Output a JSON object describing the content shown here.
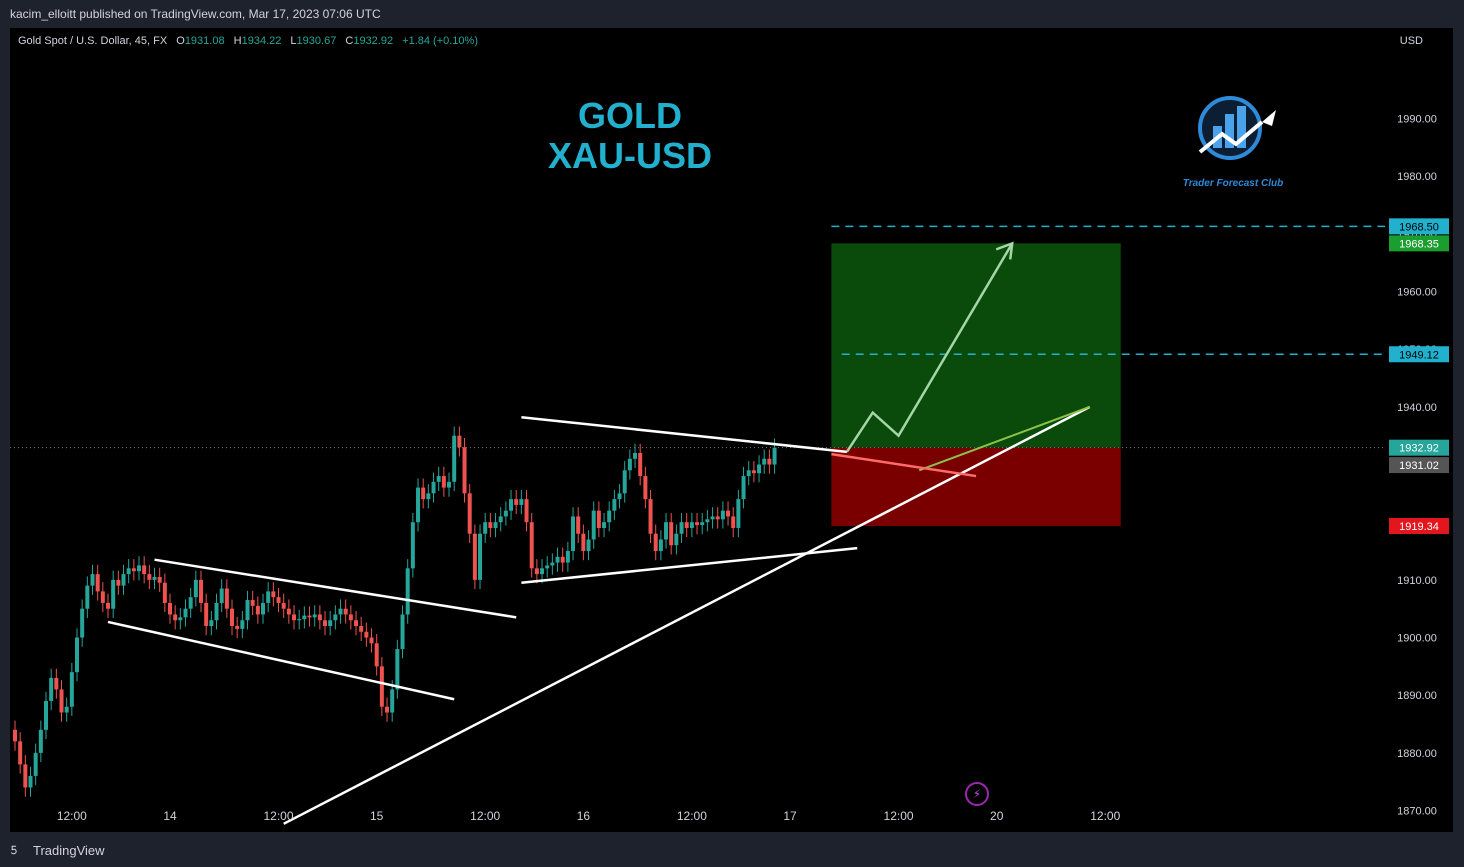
{
  "header": {
    "published": "kacim_elloitt published on TradingView.com, Mar 17, 2023 07:06 UTC"
  },
  "legend": {
    "symbol": "Gold Spot / U.S. Dollar, 45, FX",
    "open_label": "O",
    "open": "1931.08",
    "high_label": "H",
    "high": "1934.22",
    "low_label": "L",
    "low": "1930.67",
    "close_label": "C",
    "close": "1932.92",
    "change": "+1.84 (+0.10%)"
  },
  "currency": "USD",
  "title_line1": "GOLD",
  "title_line2": "XAU-USD",
  "logo_text": "Trader Forecast Club",
  "footer": {
    "brand": "TradingView"
  },
  "colors": {
    "bull": "#26a69a",
    "bear": "#ef5350",
    "accent": "#21b1cf",
    "profit_zone": "#0a4a0a",
    "loss_zone": "#7a0000"
  },
  "chart_data": {
    "type": "candlestick",
    "ylim": [
      1866,
      2005
    ],
    "y_ticks": [
      1870,
      1880,
      1890,
      1900,
      1910,
      1920,
      1930,
      1940,
      1950,
      1960,
      1970,
      1980,
      1990
    ],
    "y_tick_labels": [
      "1870.00",
      "1880.00",
      "1890.00",
      "1900.00",
      "1910.00",
      "1920.00",
      "1930.00",
      "1940.00",
      "1950.00",
      "1960.00",
      "1970.00",
      "1980.00",
      "1990.00"
    ],
    "x_ticks": [
      {
        "label": "12:00",
        "bar": 11
      },
      {
        "label": "14",
        "bar": 30
      },
      {
        "label": "12:00",
        "bar": 51
      },
      {
        "label": "15",
        "bar": 70
      },
      {
        "label": "12:00",
        "bar": 91
      },
      {
        "label": "16",
        "bar": 110
      },
      {
        "label": "12:00",
        "bar": 131
      },
      {
        "label": "17",
        "bar": 150
      },
      {
        "label": "12:00",
        "bar": 171
      },
      {
        "label": "20",
        "bar": 190
      },
      {
        "label": "12:00",
        "bar": 211
      }
    ],
    "closes": [
      1882.0,
      1878.0,
      1874.0,
      1876.0,
      1880.0,
      1884.0,
      1889.0,
      1893.0,
      1891.0,
      1887.0,
      1888.0,
      1894.0,
      1900.0,
      1905.0,
      1909.0,
      1911.0,
      1908.0,
      1906.0,
      1905.0,
      1910.0,
      1909.0,
      1911.0,
      1912.0,
      1911.5,
      1912.5,
      1911.0,
      1910.0,
      1910.5,
      1909.5,
      1906.0,
      1904.0,
      1903.0,
      1903.5,
      1905.0,
      1907.0,
      1910.0,
      1906.0,
      1902.0,
      1903.0,
      1906.0,
      1908.5,
      1905.0,
      1902.0,
      1901.5,
      1903.0,
      1906.5,
      1905.5,
      1904.0,
      1906.0,
      1908.0,
      1907.0,
      1906.0,
      1905.0,
      1904.0,
      1903.0,
      1903.2,
      1903.8,
      1903.5,
      1904.0,
      1903.0,
      1902.0,
      1903.0,
      1904.0,
      1905.0,
      1904.0,
      1903.0,
      1902.0,
      1901.0,
      1900.0,
      1899.0,
      1895.0,
      1888.0,
      1887.0,
      1891.0,
      1898.0,
      1904.0,
      1912.0,
      1920.0,
      1926.0,
      1924.0,
      1925.0,
      1927.0,
      1928.0,
      1926.0,
      1927.0,
      1935.0,
      1933.0,
      1925.0,
      1918.0,
      1910.0,
      1918.0,
      1920.0,
      1919.0,
      1920.0,
      1921.0,
      1922.0,
      1924.0,
      1923.0,
      1924.0,
      1920.0,
      1912.0,
      1911.0,
      1912.0,
      1912.5,
      1913.0,
      1914.0,
      1913.0,
      1915.0,
      1921.0,
      1918.0,
      1915.0,
      1917.0,
      1922.0,
      1919.0,
      1920.0,
      1922.0,
      1924.0,
      1925.0,
      1929.0,
      1931.0,
      1932.0,
      1928.0,
      1924.0,
      1918.0,
      1915.0,
      1917.0,
      1920.0,
      1916.0,
      1918.0,
      1920.0,
      1919.0,
      1920.0,
      1919.5,
      1920.0,
      1920.5,
      1921.0,
      1920.5,
      1922.0,
      1921.0,
      1919.0,
      1924.0,
      1928.0,
      1929.0,
      1928.5,
      1930.0,
      1931.0,
      1930.0,
      1932.92
    ],
    "last_price": 1932.92,
    "pattern_lines": [
      {
        "name": "upper-channel-line",
        "a": [
          27,
          1913.5
        ],
        "b": [
          97,
          1903.5
        ]
      },
      {
        "name": "lower-channel-line",
        "a": [
          18,
          1902.7
        ],
        "b": [
          85,
          1889.3
        ]
      },
      {
        "name": "triangle-top-line",
        "a": [
          98,
          1938.2
        ],
        "b": [
          161,
          1932.2
        ]
      },
      {
        "name": "triangle-bottom-line",
        "a": [
          98,
          1909.5
        ],
        "b": [
          163,
          1915.5
        ]
      },
      {
        "name": "rising-trendline",
        "a": [
          52,
          1867.7
        ],
        "b": [
          208,
          1940.0
        ]
      }
    ],
    "projection_path": [
      [
        161,
        1932.2
      ],
      [
        166,
        1939.0
      ],
      [
        171,
        1935.0
      ],
      [
        193,
        1968.35
      ]
    ],
    "red_arrow": {
      "a": [
        158,
        1931.8
      ],
      "b": [
        186,
        1928.0
      ]
    },
    "position": {
      "entry": 1932.92,
      "target": 1968.35,
      "stop": 1919.34,
      "x_start": 158,
      "x_end": 214
    },
    "price_labels": [
      {
        "value": "1968.50",
        "price": 1971.3,
        "bg": "#21b1cf",
        "fg": "#000000"
      },
      {
        "value": "1968.35",
        "price": 1968.35,
        "bg": "#1a9e2f",
        "fg": "#ffffff"
      },
      {
        "value": "1949.12",
        "price": 1949.12,
        "bg": "#21b1cf",
        "fg": "#000000"
      },
      {
        "value": "1932.92",
        "price": 1932.92,
        "bg": "#26a69a",
        "fg": "#ffffff"
      },
      {
        "value": "1931.02",
        "price": 1929.9,
        "bg": "#555555",
        "fg": "#ffffff"
      },
      {
        "value": "1919.34",
        "price": 1919.34,
        "bg": "#e3161e",
        "fg": "#ffffff"
      }
    ]
  }
}
